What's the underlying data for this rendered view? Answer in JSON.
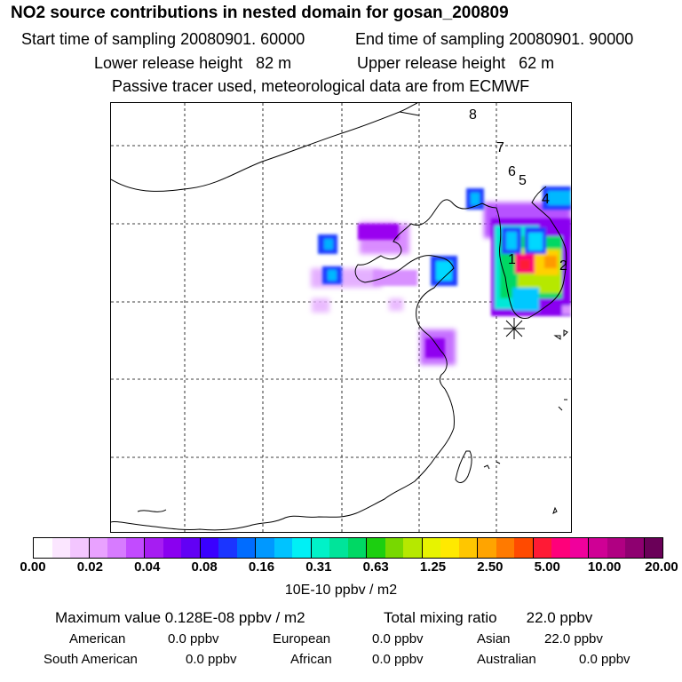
{
  "title": "NO2 source contributions in nested domain for gosan_200809",
  "sampling": {
    "start": "Start time of sampling 20080901. 60000",
    "end": "End time of sampling 20080901. 90000"
  },
  "release": {
    "lower": "Lower release height   82 m",
    "upper": "Upper release height   62 m"
  },
  "note": "Passive tracer used, meteorological data are from ECMWF",
  "map": {
    "station_labels": [
      "1",
      "2",
      "4",
      "5",
      "6",
      "7",
      "8"
    ],
    "receptor_icon": "asterisk-icon"
  },
  "colorbar": {
    "colors": [
      "#ffffff",
      "#fbe6ff",
      "#f3c6ff",
      "#e9a2ff",
      "#d77bff",
      "#c24bff",
      "#a61df2",
      "#8a00f0",
      "#6200f5",
      "#3a00ff",
      "#1b35ff",
      "#006cff",
      "#0098ff",
      "#00c3ff",
      "#00f0f5",
      "#00f2c8",
      "#00e49a",
      "#00d864",
      "#1ccf10",
      "#78d800",
      "#b6e800",
      "#e7f300",
      "#ffe900",
      "#ffc600",
      "#ffa400",
      "#ff7a00",
      "#ff4a00",
      "#ff1a35",
      "#ff007a",
      "#f0009c",
      "#cf0095",
      "#b00082",
      "#8e0070",
      "#6a0058"
    ],
    "tick_labels": [
      "0.00",
      "0.02",
      "0.04",
      "0.08",
      "0.16",
      "0.31",
      "0.63",
      "1.25",
      "2.50",
      "5.00",
      "10.00",
      "20.00"
    ],
    "unit": "10E-10 ppbv / m2"
  },
  "summary": {
    "maximum": "Maximum value  0.128E-08 ppbv / m2",
    "total": "Total mixing ratio       22.0 ppbv"
  },
  "regions": [
    {
      "name": "American",
      "value": "0.0 ppbv"
    },
    {
      "name": "European",
      "value": "0.0 ppbv"
    },
    {
      "name": "Asian",
      "value": "22.0 ppbv"
    },
    {
      "name": "South American",
      "value": "0.0 ppbv"
    },
    {
      "name": "African",
      "value": "0.0 ppbv"
    },
    {
      "name": "Australian",
      "value": "0.0 ppbv"
    }
  ]
}
